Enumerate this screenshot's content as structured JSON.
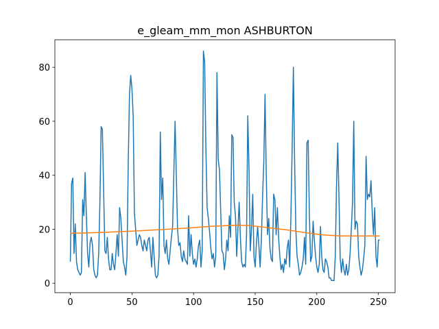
{
  "chart_data": {
    "type": "line",
    "title": "e_gleam_mm_mon ASHBURTON",
    "xlim": [
      -12.55,
      263.55
    ],
    "xticks": [
      0,
      50,
      100,
      150,
      200,
      250
    ],
    "ylim": [
      -3.5,
      90.2
    ],
    "yticks": [
      0,
      20,
      40,
      60,
      80
    ],
    "series": [
      {
        "color": "#1f77b4",
        "values": [
          8,
          37,
          39,
          11,
          22,
          8,
          5,
          4,
          3,
          4,
          31,
          25,
          41,
          25,
          11,
          6,
          15,
          17,
          14,
          5,
          3,
          2,
          3,
          11,
          30,
          58,
          57,
          35,
          12,
          11,
          17,
          9,
          5,
          5,
          11,
          7,
          5,
          11,
          18,
          10,
          28,
          24,
          16,
          8,
          6,
          3,
          10,
          45,
          70,
          77,
          72,
          62,
          26,
          20,
          14,
          16,
          18,
          17,
          14,
          12,
          16,
          14,
          12,
          16,
          17,
          12,
          6,
          17,
          10,
          3,
          2,
          3,
          10,
          56,
          31,
          39,
          14,
          11,
          16,
          9,
          7,
          12,
          17,
          21,
          41,
          60,
          40,
          20,
          14,
          15,
          10,
          8,
          12,
          9,
          8,
          7,
          25,
          10,
          18,
          11,
          7,
          9,
          6,
          9,
          14,
          16,
          6,
          12,
          86,
          82,
          50,
          28,
          24,
          19,
          13,
          9,
          11,
          6,
          10,
          78,
          46,
          42,
          27,
          12,
          11,
          5,
          9,
          16,
          12,
          25,
          17,
          55,
          54,
          30,
          25,
          10,
          20,
          30,
          17,
          8,
          6,
          7,
          6,
          18,
          62,
          42,
          12,
          20,
          33,
          10,
          6,
          15,
          21,
          14,
          6,
          16,
          32,
          45,
          70,
          40,
          18,
          24,
          13,
          9,
          8,
          33,
          31,
          18,
          28,
          17,
          10,
          5,
          7,
          4,
          9,
          7,
          13,
          16,
          6,
          25,
          50,
          80,
          45,
          20,
          10,
          7,
          3,
          4,
          6,
          9,
          17,
          7,
          52,
          53,
          25,
          8,
          10,
          23,
          16,
          10,
          6,
          4,
          7,
          21,
          10,
          5,
          4,
          9,
          8,
          6,
          2,
          2,
          1,
          1,
          1,
          10,
          36,
          52,
          32,
          9,
          4,
          9,
          5,
          3,
          7,
          3,
          5,
          11,
          20,
          30,
          60,
          20,
          23,
          22,
          10,
          6,
          3,
          5,
          9,
          14,
          47,
          31,
          33,
          32,
          38,
          26,
          18,
          28,
          10,
          6,
          16,
          16
        ]
      },
      {
        "color": "#ff7f0e",
        "x": [
          0,
          25,
          50,
          75,
          100,
          115,
          135,
          145,
          160,
          175,
          190,
          205,
          220,
          251
        ],
        "values": [
          18.5,
          18.8,
          19.3,
          19.9,
          20.6,
          21.1,
          21.5,
          21.4,
          20.6,
          19.8,
          18.8,
          17.9,
          17.5,
          17.5
        ]
      }
    ]
  }
}
